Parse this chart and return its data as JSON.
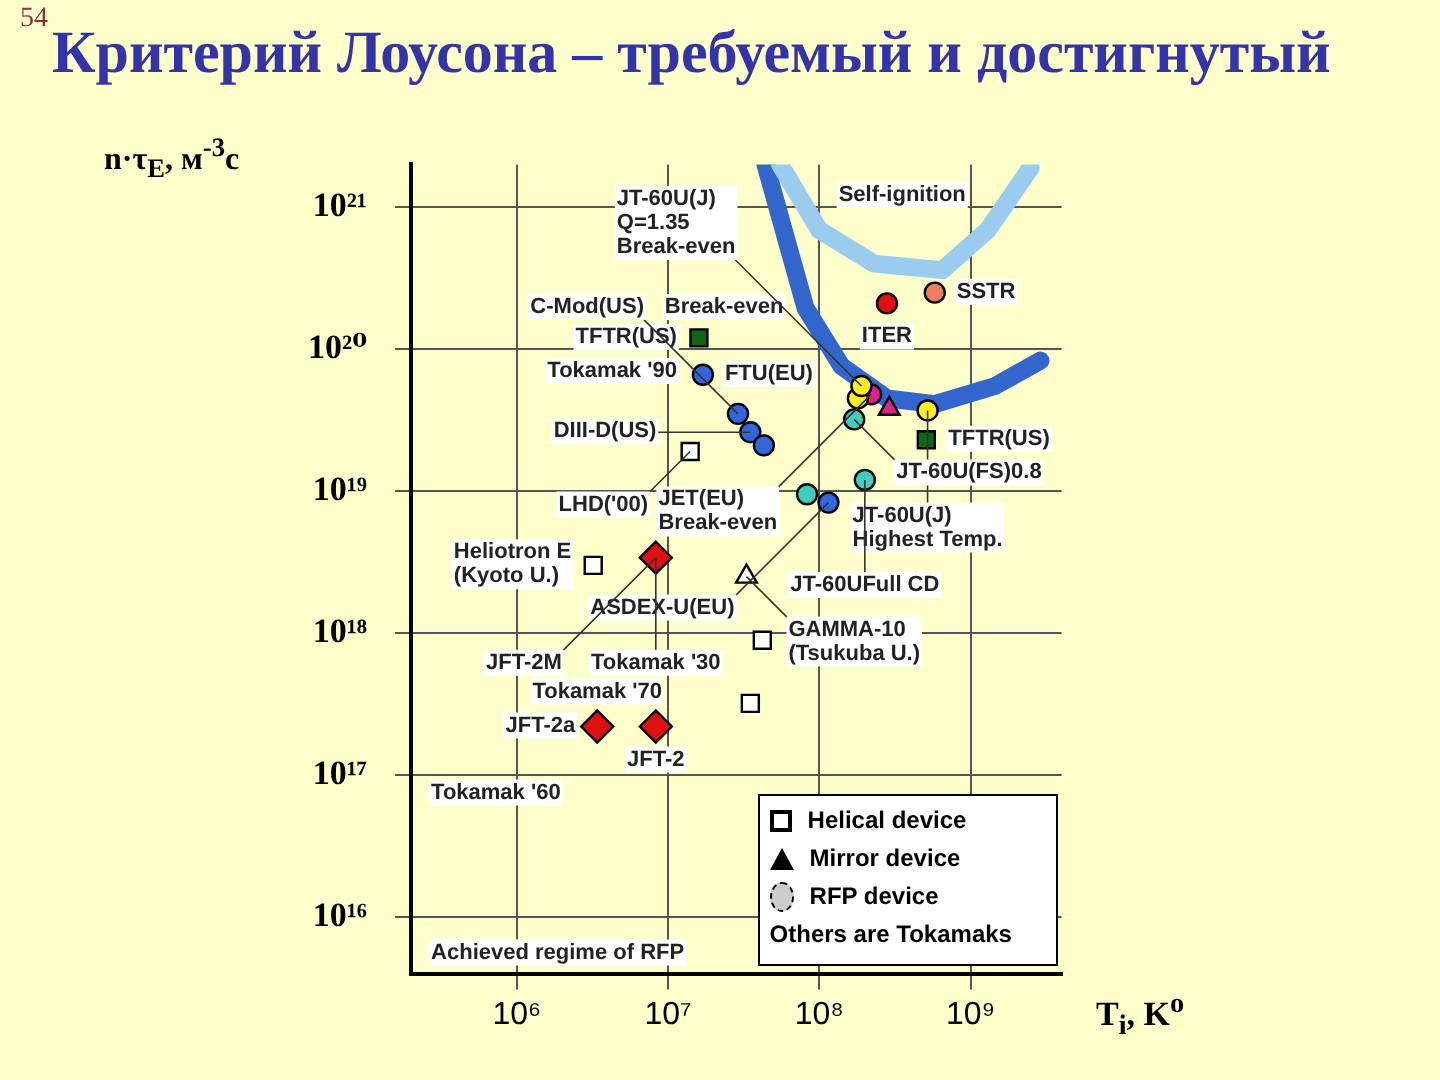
{
  "chart_data": {
    "type": "scatter",
    "title": "Критерий Лоусона – требуемый и достигнутый",
    "xlabel": "T$_{i}$, K$^{o}$",
    "ylabel": "n·τ$_{E}$, м$^{-3}$с",
    "log": "xy",
    "grid": true,
    "legend": "bottom right",
    "xlim": [
      200000,
      4000000000
    ],
    "ylim": [
      4000000000000000.0,
      2e+21
    ],
    "xticks": [
      {
        "value": 1000000,
        "label": "10⁶"
      },
      {
        "value": 10000000,
        "label": "10⁷"
      },
      {
        "value": 100000000,
        "label": "10⁸"
      },
      {
        "value": 1000000000,
        "label": "10⁹"
      }
    ],
    "yticks": [
      {
        "value": 1e+16,
        "label": "10¹⁶"
      },
      {
        "value": 1e+17,
        "label": "10¹⁷"
      },
      {
        "value": 1e+18,
        "label": "10¹⁸"
      },
      {
        "value": 1e+19,
        "label": "10¹⁹"
      },
      {
        "value": 1e+20,
        "label": "10²⁰"
      },
      {
        "value": 1e+21,
        "label": "10²¹"
      }
    ],
    "series": [
      {
        "type": "line",
        "color": "#99ccee",
        "marker": "none",
        "x": [
          55000000,
          100000000,
          230000000,
          650000000,
          1300000000,
          2500000000
        ],
        "values": [
          2e+21,
          6.9e+20,
          4e+20,
          3.6e+20,
          6.9e+20,
          1.9e+21
        ]
      },
      {
        "type": "line",
        "color": "#3366cc",
        "marker": "none",
        "x": [
          44000000,
          81000000,
          140000000,
          280000000,
          580000000,
          1450000000,
          2900000000
        ],
        "values": [
          2e+21,
          1.95e+20,
          7.6e+19,
          4.5e+19,
          4.1e+19,
          5.5e+19,
          8.3e+19
        ]
      },
      {
        "marker": "circle",
        "x": [
          280000000,
          580000000,
          17000000,
          29000000,
          35000000,
          43000000,
          220000000,
          180000000,
          190000000,
          170000000,
          520000000,
          200000000,
          83000000,
          115000000
        ],
        "values": [
          2.1e+20,
          2.5e+20,
          6.6e+19,
          3.5e+19,
          2.6e+19,
          2.1e+19,
          4.8e+19,
          4.5e+19,
          5.5e+19,
          3.2e+19,
          3.7e+19,
          1.2e+19,
          9.5e+18,
          8.3e+18
        ],
        "colors": [
          "#e01010",
          "#f08060",
          "#3366dd",
          "#3366dd",
          "#3366dd",
          "#3366dd",
          "#dd2288",
          "#ffee22",
          "#ffee22",
          "#44ccbb",
          "#ffee22",
          "#44ccbb",
          "#44ccbb",
          "#3366dd"
        ]
      },
      {
        "marker": "triangle",
        "color": "#dd2288",
        "x": [
          290000000
        ],
        "values": [
          3.8e+19
        ]
      },
      {
        "marker": "square",
        "color": "#116611",
        "x": [
          16000000,
          510000000
        ],
        "values": [
          1.2e+20,
          2.3e+19
        ]
      },
      {
        "marker": "diamond",
        "color": "#dd1111",
        "x": [
          8300000,
          3400000,
          8300000
        ],
        "values": [
          3.4e+18,
          2.2e+17,
          2.2e+17
        ]
      },
      {
        "name": "Helical device",
        "marker": "square",
        "color": "#ffffff",
        "x": [
          14000000,
          3200000,
          42000000,
          35000000
        ],
        "values": [
          1.9e+19,
          3e+18,
          8.9e+17,
          3.2e+17
        ]
      },
      {
        "name": "Mirror device",
        "marker": "triangle",
        "color": "#ffffff",
        "x": [
          33000000
        ],
        "values": [
          2.5e+18
        ]
      }
    ],
    "annotations": [
      "54",
      "RFP device",
      "Others are Tokamaks",
      "Tokamak '60",
      "Achieved regime of RFP",
      {
        "text": "Self-ignition",
        "x": 1300000000,
        "y": 6.9e+20
      },
      {
        "text": "Break-even",
        "x": 81000000,
        "y": 1.95e+20
      },
      {
        "text": "ITER",
        "x": 280000000,
        "y": 2.1e+20
      },
      {
        "text": "SSTR",
        "x": 580000000,
        "y": 2.5e+20
      },
      {
        "text": "TFTR(US)",
        "x": 16000000,
        "y": 1.2e+20
      },
      {
        "text": "Tokamak '90",
        "x": 16000000,
        "y": 1.2e+20
      },
      {
        "text": "FTU(EU)",
        "x": 17000000,
        "y": 6.6e+19
      },
      {
        "text": "JT-60U(J)\nQ=1.35\nBreak-even",
        "x": 190000000,
        "y": 5.5e+19
      },
      {
        "text": "JT-60U(J)\nHighest Temp.",
        "x": 520000000,
        "y": 3.7e+19
      },
      {
        "text": "JET(EU)\nBreak-even",
        "x": 220000000,
        "y": 4.8e+19
      },
      {
        "text": "DIII-D(US)",
        "x": 35000000,
        "y": 2.6e+19
      },
      {
        "text": "C-Mod(US)",
        "x": 29000000,
        "y": 3.5e+19
      },
      {
        "text": "LHD('00)",
        "x": 14000000,
        "y": 1.9e+19
      },
      {
        "text": "JT-60U(FS)0.8",
        "x": 170000000,
        "y": 3.2e+19
      },
      {
        "text": "TFTR(US)",
        "x": 510000000,
        "y": 2.3e+19
      },
      {
        "text": "JT-60UFull CD",
        "x": 200000000,
        "y": 1.2e+19
      },
      {
        "text": "ASDEX-U(EU)",
        "x": 115000000,
        "y": 8.3e+18
      },
      {
        "text": "Heliotron E\n(Kyoto U.)",
        "x": 3200000,
        "y": 3e+18
      },
      {
        "text": "Tokamak '30",
        "x": 8300000,
        "y": 3.4e+18
      },
      {
        "text": "JFT-2M",
        "x": 8300000,
        "y": 3.4e+18
      },
      {
        "text": "GAMMA-10\n(Tsukuba U.)",
        "x": 33000000,
        "y": 2.5e+18
      },
      {
        "text": "JFT-2a",
        "x": 3400000,
        "y": 2.2e+17
      },
      {
        "text": "Tokamak '70",
        "x": 3400000,
        "y": 2.2e+17
      },
      {
        "text": "JFT-2",
        "x": 8300000,
        "y": 2.2e+17
      }
    ]
  }
}
